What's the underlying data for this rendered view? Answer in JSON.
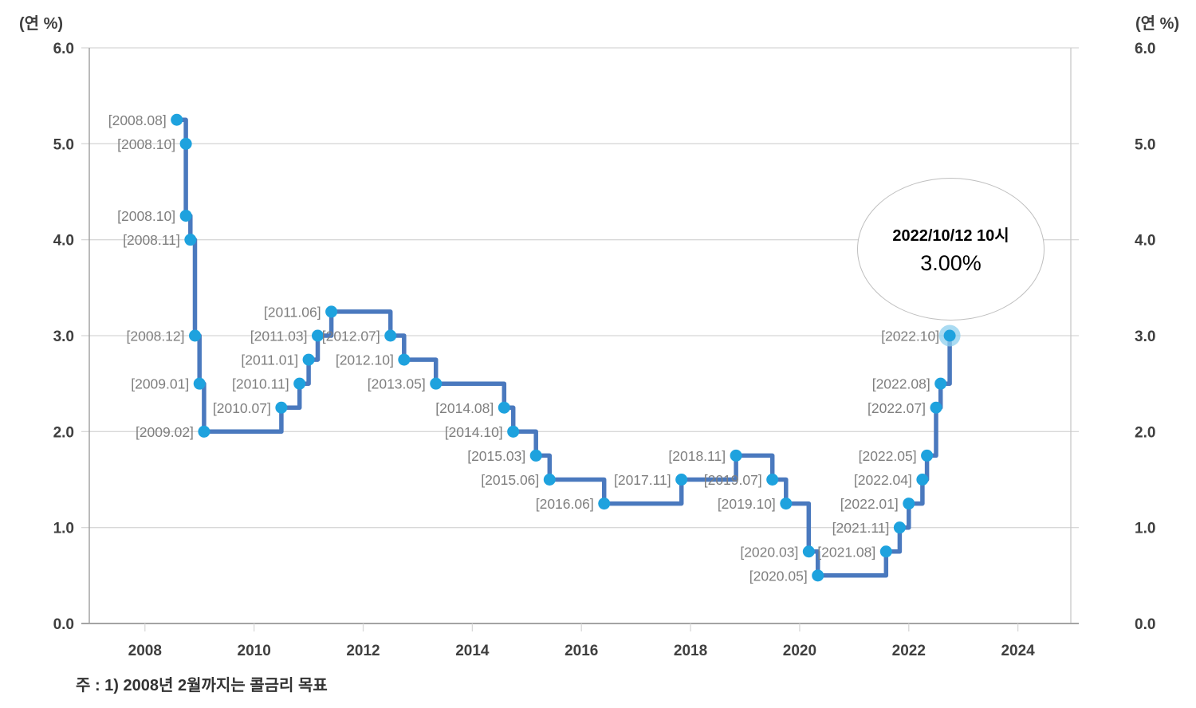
{
  "chart_data": {
    "type": "line",
    "subtype": "step-after",
    "y_unit_label": "(연 %)",
    "ylim": [
      0,
      6
    ],
    "y_tick_labels": [
      "6.0",
      "5.0",
      "4.0",
      "3.0",
      "2.0",
      "1.0",
      "0.0"
    ],
    "x_tick_labels": [
      "2008",
      "2010",
      "2012",
      "2014",
      "2016",
      "2018",
      "2020",
      "2022",
      "2024"
    ],
    "xlim_years": [
      2006.98,
      2024.97
    ],
    "grid": true,
    "legend": "none",
    "points": [
      {
        "date": "2008.08",
        "label": "[2008.08]",
        "value": 5.25
      },
      {
        "date": "2008.10",
        "label": "[2008.10]",
        "value": 5.0
      },
      {
        "date": "2008.10",
        "label": "[2008.10]",
        "value": 4.25
      },
      {
        "date": "2008.11",
        "label": "[2008.11]",
        "value": 4.0
      },
      {
        "date": "2008.12",
        "label": "[2008.12]",
        "value": 3.0
      },
      {
        "date": "2009.01",
        "label": "[2009.01]",
        "value": 2.5
      },
      {
        "date": "2009.02",
        "label": "[2009.02]",
        "value": 2.0
      },
      {
        "date": "2010.07",
        "label": "[2010.07]",
        "value": 2.25
      },
      {
        "date": "2010.11",
        "label": "[2010.11]",
        "value": 2.5
      },
      {
        "date": "2011.01",
        "label": "[2011.01]",
        "value": 2.75
      },
      {
        "date": "2011.03",
        "label": "[2011.03]",
        "value": 3.0
      },
      {
        "date": "2011.06",
        "label": "[2011.06]",
        "value": 3.25
      },
      {
        "date": "2012.07",
        "label": "[2012.07]",
        "value": 3.0
      },
      {
        "date": "2012.10",
        "label": "[2012.10]",
        "value": 2.75
      },
      {
        "date": "2013.05",
        "label": "[2013.05]",
        "value": 2.5
      },
      {
        "date": "2014.08",
        "label": "[2014.08]",
        "value": 2.25
      },
      {
        "date": "2014.10",
        "label": "[2014.10]",
        "value": 2.0
      },
      {
        "date": "2015.03",
        "label": "[2015.03]",
        "value": 1.75
      },
      {
        "date": "2015.06",
        "label": "[2015.06]",
        "value": 1.5
      },
      {
        "date": "2016.06",
        "label": "[2016.06]",
        "value": 1.25
      },
      {
        "date": "2017.11",
        "label": "[2017.11]",
        "value": 1.5
      },
      {
        "date": "2018.11",
        "label": "[2018.11]",
        "value": 1.75
      },
      {
        "date": "2019.07",
        "label": "[2019.07]",
        "value": 1.5
      },
      {
        "date": "2019.10",
        "label": "[2019.10]",
        "value": 1.25
      },
      {
        "date": "2020.03",
        "label": "[2020.03]",
        "value": 0.75
      },
      {
        "date": "2020.05",
        "label": "[2020.05]",
        "value": 0.5
      },
      {
        "date": "2021.08",
        "label": "[2021.08]",
        "value": 0.75
      },
      {
        "date": "2021.11",
        "label": "[2021.11]",
        "value": 1.0
      },
      {
        "date": "2022.01",
        "label": "[2022.01]",
        "value": 1.25
      },
      {
        "date": "2022.04",
        "label": "[2022.04]",
        "value": 1.5
      },
      {
        "date": "2022.05",
        "label": "[2022.05]",
        "value": 1.75
      },
      {
        "date": "2022.07",
        "label": "[2022.07]",
        "value": 2.25
      },
      {
        "date": "2022.08",
        "label": "[2022.08]",
        "value": 2.5
      },
      {
        "date": "2022.10",
        "label": "[2022.10]",
        "value": 3.0
      }
    ],
    "highlight_last_point": true,
    "annotation": {
      "line1": "2022/10/12 10시",
      "line2": "3.00%"
    },
    "note": "주 : 1) 2008년 2월까지는 콜금리 목표"
  },
  "colors": {
    "line": "#4A79BE",
    "marker": "#1EA2DE",
    "marker_halo": "#8ECFEE",
    "point_label": "#7F7F7F",
    "gridline": "#D8D8D8",
    "axis_line": "#A3A3A3",
    "border_line": "#C9C9C9",
    "tick_label": "#3F3F3F"
  }
}
